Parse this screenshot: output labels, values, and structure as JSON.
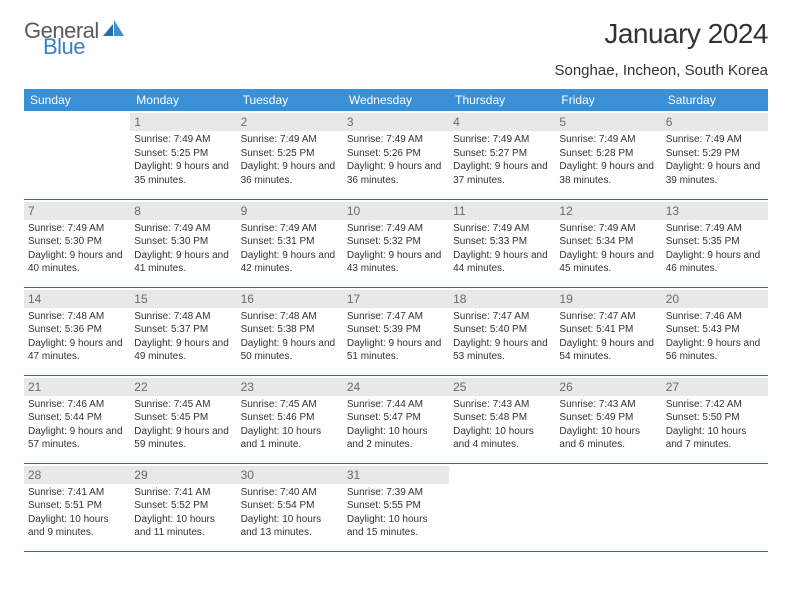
{
  "logo": {
    "word1": "General",
    "word2": "Blue",
    "color1": "#5a5a5a",
    "color2": "#3b7fc4"
  },
  "title": "January 2024",
  "location": "Songhae, Incheon, South Korea",
  "style": {
    "header_bg": "#3b8fd4",
    "header_fg": "#ffffff",
    "row_border": "#2a6aa8",
    "daynum_bg": "#e8e8e8",
    "daynum_fg": "#6a6a6a",
    "body_fontsize": 10,
    "header_fontsize": 12,
    "title_fontsize": 28,
    "location_fontsize": 15
  },
  "columns": [
    "Sunday",
    "Monday",
    "Tuesday",
    "Wednesday",
    "Thursday",
    "Friday",
    "Saturday"
  ],
  "weeks": [
    [
      {
        "day": "",
        "sunrise": "",
        "sunset": "",
        "daylight": ""
      },
      {
        "day": "1",
        "sunrise": "Sunrise: 7:49 AM",
        "sunset": "Sunset: 5:25 PM",
        "daylight": "Daylight: 9 hours and 35 minutes."
      },
      {
        "day": "2",
        "sunrise": "Sunrise: 7:49 AM",
        "sunset": "Sunset: 5:25 PM",
        "daylight": "Daylight: 9 hours and 36 minutes."
      },
      {
        "day": "3",
        "sunrise": "Sunrise: 7:49 AM",
        "sunset": "Sunset: 5:26 PM",
        "daylight": "Daylight: 9 hours and 36 minutes."
      },
      {
        "day": "4",
        "sunrise": "Sunrise: 7:49 AM",
        "sunset": "Sunset: 5:27 PM",
        "daylight": "Daylight: 9 hours and 37 minutes."
      },
      {
        "day": "5",
        "sunrise": "Sunrise: 7:49 AM",
        "sunset": "Sunset: 5:28 PM",
        "daylight": "Daylight: 9 hours and 38 minutes."
      },
      {
        "day": "6",
        "sunrise": "Sunrise: 7:49 AM",
        "sunset": "Sunset: 5:29 PM",
        "daylight": "Daylight: 9 hours and 39 minutes."
      }
    ],
    [
      {
        "day": "7",
        "sunrise": "Sunrise: 7:49 AM",
        "sunset": "Sunset: 5:30 PM",
        "daylight": "Daylight: 9 hours and 40 minutes."
      },
      {
        "day": "8",
        "sunrise": "Sunrise: 7:49 AM",
        "sunset": "Sunset: 5:30 PM",
        "daylight": "Daylight: 9 hours and 41 minutes."
      },
      {
        "day": "9",
        "sunrise": "Sunrise: 7:49 AM",
        "sunset": "Sunset: 5:31 PM",
        "daylight": "Daylight: 9 hours and 42 minutes."
      },
      {
        "day": "10",
        "sunrise": "Sunrise: 7:49 AM",
        "sunset": "Sunset: 5:32 PM",
        "daylight": "Daylight: 9 hours and 43 minutes."
      },
      {
        "day": "11",
        "sunrise": "Sunrise: 7:49 AM",
        "sunset": "Sunset: 5:33 PM",
        "daylight": "Daylight: 9 hours and 44 minutes."
      },
      {
        "day": "12",
        "sunrise": "Sunrise: 7:49 AM",
        "sunset": "Sunset: 5:34 PM",
        "daylight": "Daylight: 9 hours and 45 minutes."
      },
      {
        "day": "13",
        "sunrise": "Sunrise: 7:49 AM",
        "sunset": "Sunset: 5:35 PM",
        "daylight": "Daylight: 9 hours and 46 minutes."
      }
    ],
    [
      {
        "day": "14",
        "sunrise": "Sunrise: 7:48 AM",
        "sunset": "Sunset: 5:36 PM",
        "daylight": "Daylight: 9 hours and 47 minutes."
      },
      {
        "day": "15",
        "sunrise": "Sunrise: 7:48 AM",
        "sunset": "Sunset: 5:37 PM",
        "daylight": "Daylight: 9 hours and 49 minutes."
      },
      {
        "day": "16",
        "sunrise": "Sunrise: 7:48 AM",
        "sunset": "Sunset: 5:38 PM",
        "daylight": "Daylight: 9 hours and 50 minutes."
      },
      {
        "day": "17",
        "sunrise": "Sunrise: 7:47 AM",
        "sunset": "Sunset: 5:39 PM",
        "daylight": "Daylight: 9 hours and 51 minutes."
      },
      {
        "day": "18",
        "sunrise": "Sunrise: 7:47 AM",
        "sunset": "Sunset: 5:40 PM",
        "daylight": "Daylight: 9 hours and 53 minutes."
      },
      {
        "day": "19",
        "sunrise": "Sunrise: 7:47 AM",
        "sunset": "Sunset: 5:41 PM",
        "daylight": "Daylight: 9 hours and 54 minutes."
      },
      {
        "day": "20",
        "sunrise": "Sunrise: 7:46 AM",
        "sunset": "Sunset: 5:43 PM",
        "daylight": "Daylight: 9 hours and 56 minutes."
      }
    ],
    [
      {
        "day": "21",
        "sunrise": "Sunrise: 7:46 AM",
        "sunset": "Sunset: 5:44 PM",
        "daylight": "Daylight: 9 hours and 57 minutes."
      },
      {
        "day": "22",
        "sunrise": "Sunrise: 7:45 AM",
        "sunset": "Sunset: 5:45 PM",
        "daylight": "Daylight: 9 hours and 59 minutes."
      },
      {
        "day": "23",
        "sunrise": "Sunrise: 7:45 AM",
        "sunset": "Sunset: 5:46 PM",
        "daylight": "Daylight: 10 hours and 1 minute."
      },
      {
        "day": "24",
        "sunrise": "Sunrise: 7:44 AM",
        "sunset": "Sunset: 5:47 PM",
        "daylight": "Daylight: 10 hours and 2 minutes."
      },
      {
        "day": "25",
        "sunrise": "Sunrise: 7:43 AM",
        "sunset": "Sunset: 5:48 PM",
        "daylight": "Daylight: 10 hours and 4 minutes."
      },
      {
        "day": "26",
        "sunrise": "Sunrise: 7:43 AM",
        "sunset": "Sunset: 5:49 PM",
        "daylight": "Daylight: 10 hours and 6 minutes."
      },
      {
        "day": "27",
        "sunrise": "Sunrise: 7:42 AM",
        "sunset": "Sunset: 5:50 PM",
        "daylight": "Daylight: 10 hours and 7 minutes."
      }
    ],
    [
      {
        "day": "28",
        "sunrise": "Sunrise: 7:41 AM",
        "sunset": "Sunset: 5:51 PM",
        "daylight": "Daylight: 10 hours and 9 minutes."
      },
      {
        "day": "29",
        "sunrise": "Sunrise: 7:41 AM",
        "sunset": "Sunset: 5:52 PM",
        "daylight": "Daylight: 10 hours and 11 minutes."
      },
      {
        "day": "30",
        "sunrise": "Sunrise: 7:40 AM",
        "sunset": "Sunset: 5:54 PM",
        "daylight": "Daylight: 10 hours and 13 minutes."
      },
      {
        "day": "31",
        "sunrise": "Sunrise: 7:39 AM",
        "sunset": "Sunset: 5:55 PM",
        "daylight": "Daylight: 10 hours and 15 minutes."
      },
      {
        "day": "",
        "sunrise": "",
        "sunset": "",
        "daylight": ""
      },
      {
        "day": "",
        "sunrise": "",
        "sunset": "",
        "daylight": ""
      },
      {
        "day": "",
        "sunrise": "",
        "sunset": "",
        "daylight": ""
      }
    ]
  ]
}
